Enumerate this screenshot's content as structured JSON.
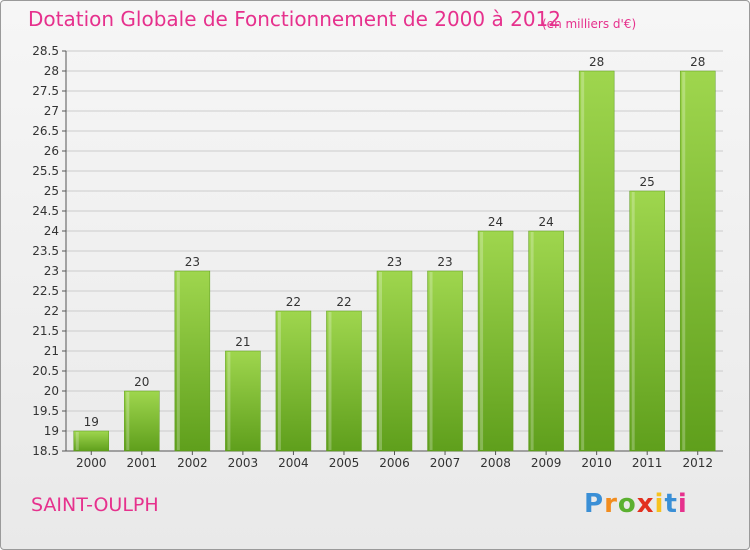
{
  "title": "Dotation Globale de Fonctionnement de 2000 à 2012",
  "unit_note": "(en milliers d'€)",
  "commune": "SAINT-OULPH",
  "logo": {
    "text": "Proxiti",
    "letter_colors": [
      "#3a8fd6",
      "#f28c1e",
      "#5bb030",
      "#e2301f",
      "#f7c21f",
      "#3a8fd6",
      "#e6318d"
    ]
  },
  "colors": {
    "title": "#e6318d",
    "bar_top": "#9fd64e",
    "bar_bottom": "#5f9f1c",
    "gridline": "#cccccc"
  },
  "chart_data": {
    "type": "bar",
    "title": "Dotation Globale de Fonctionnement de 2000 à 2012",
    "xlabel": "",
    "ylabel": "",
    "categories": [
      "2000",
      "2001",
      "2002",
      "2003",
      "2004",
      "2005",
      "2006",
      "2007",
      "2008",
      "2009",
      "2010",
      "2011",
      "2012"
    ],
    "values": [
      19,
      20,
      23,
      21,
      22,
      22,
      23,
      23,
      24,
      24,
      28,
      25,
      28
    ],
    "ylim": [
      18.5,
      28.5
    ],
    "yticks": [
      "18.5",
      "19",
      "19.5",
      "20",
      "20.5",
      "21",
      "21.5",
      "22",
      "22.5",
      "23",
      "23.5",
      "24",
      "24.5",
      "25",
      "25.5",
      "26",
      "26.5",
      "27",
      "27.5",
      "28",
      "28.5"
    ],
    "grid": true,
    "legend": "none"
  }
}
